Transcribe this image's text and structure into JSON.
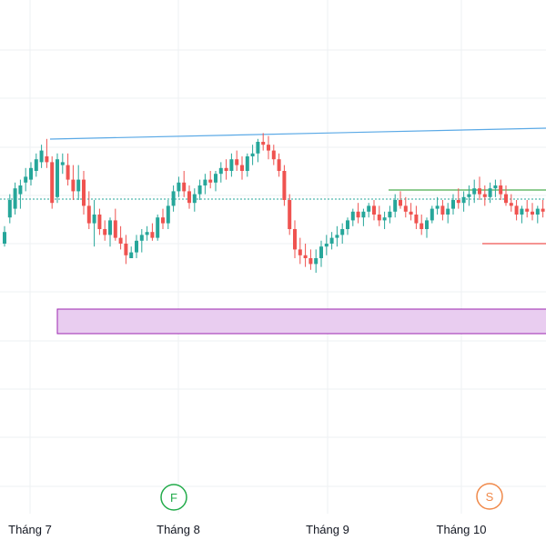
{
  "chart_data": {
    "type": "candlestick",
    "x_axis_labels": [
      "Tháng 7",
      "Tháng 8",
      "Tháng 9",
      "Tháng 10"
    ],
    "event_markers": [
      {
        "label": "F",
        "color": "#22ab4a"
      },
      {
        "label": "S",
        "color": "#f0894a"
      }
    ],
    "colors": {
      "up": "#26a69a",
      "down": "#ef5350",
      "trendline": "#5aa9e6",
      "support_zone_fill": "#e9cdf0",
      "support_zone_border": "#9c27b0",
      "resistance_line": "#4caf50",
      "last_price_line": "#26a69a",
      "grid": "#eef0f3"
    },
    "y_range": [
      0,
      100
    ],
    "candles": [
      [
        35,
        41,
        34,
        39
      ],
      [
        44,
        52,
        42,
        50
      ],
      [
        47,
        56,
        45,
        54
      ],
      [
        52,
        57,
        47,
        55
      ],
      [
        56,
        61,
        53,
        58
      ],
      [
        57,
        63,
        55,
        61
      ],
      [
        60,
        66,
        58,
        64
      ],
      [
        63,
        69,
        61,
        67
      ],
      [
        65,
        71,
        61,
        63
      ],
      [
        63,
        65,
        47,
        49
      ],
      [
        51,
        66,
        49,
        64
      ],
      [
        62,
        66,
        59,
        63
      ],
      [
        62,
        66,
        55,
        57
      ],
      [
        57,
        62,
        50,
        53
      ],
      [
        53,
        62,
        50,
        57
      ],
      [
        57,
        60,
        45,
        48
      ],
      [
        48,
        53,
        40,
        42
      ],
      [
        42,
        50,
        34,
        45
      ],
      [
        45,
        47,
        38,
        40
      ],
      [
        40,
        43,
        36,
        38
      ],
      [
        38,
        44,
        34,
        43
      ],
      [
        43,
        47,
        36,
        37
      ],
      [
        37,
        41,
        33,
        35
      ],
      [
        35,
        38,
        28,
        31
      ],
      [
        30,
        34,
        30,
        32
      ],
      [
        32,
        38,
        30,
        36
      ],
      [
        36,
        40,
        32,
        38
      ],
      [
        38,
        41,
        36,
        39
      ],
      [
        39,
        42,
        36,
        37
      ],
      [
        37,
        45,
        36,
        44
      ],
      [
        44,
        47,
        40,
        42
      ],
      [
        42,
        50,
        40,
        48
      ],
      [
        48,
        55,
        46,
        53
      ],
      [
        53,
        58,
        51,
        56
      ],
      [
        56,
        60,
        51,
        53
      ],
      [
        53,
        55,
        47,
        49
      ],
      [
        49,
        54,
        46,
        52
      ],
      [
        52,
        57,
        50,
        55
      ],
      [
        55,
        59,
        52,
        57
      ],
      [
        57,
        60,
        54,
        56
      ],
      [
        56,
        60,
        53,
        59
      ],
      [
        59,
        63,
        56,
        61
      ],
      [
        61,
        64,
        57,
        60
      ],
      [
        60,
        66,
        58,
        64
      ],
      [
        64,
        67,
        60,
        62
      ],
      [
        62,
        65,
        57,
        60
      ],
      [
        60,
        66,
        58,
        65
      ],
      [
        65,
        69,
        62,
        66
      ],
      [
        66,
        71,
        63,
        70
      ],
      [
        70,
        73,
        67,
        69
      ],
      [
        69,
        72,
        64,
        67
      ],
      [
        67,
        69,
        62,
        64
      ],
      [
        64,
        66,
        58,
        60
      ],
      [
        60,
        62,
        48,
        50
      ],
      [
        50,
        52,
        38,
        40
      ],
      [
        40,
        43,
        30,
        33
      ],
      [
        33,
        37,
        28,
        31
      ],
      [
        31,
        35,
        27,
        30
      ],
      [
        30,
        33,
        26,
        28
      ],
      [
        28,
        33,
        25,
        30
      ],
      [
        30,
        36,
        27,
        34
      ],
      [
        34,
        38,
        31,
        35
      ],
      [
        35,
        39,
        33,
        37
      ],
      [
        37,
        41,
        34,
        38
      ],
      [
        38,
        42,
        35,
        40
      ],
      [
        40,
        44,
        38,
        43
      ],
      [
        43,
        47,
        41,
        46
      ],
      [
        46,
        49,
        42,
        44
      ],
      [
        44,
        47,
        41,
        46
      ],
      [
        46,
        49,
        44,
        48
      ],
      [
        48,
        50,
        43,
        45
      ],
      [
        45,
        48,
        41,
        43
      ],
      [
        43,
        46,
        40,
        44
      ],
      [
        44,
        48,
        42,
        46
      ],
      [
        46,
        52,
        44,
        50
      ],
      [
        50,
        53,
        47,
        48
      ],
      [
        48,
        51,
        44,
        46
      ],
      [
        46,
        49,
        43,
        45
      ],
      [
        45,
        48,
        40,
        42
      ],
      [
        42,
        45,
        38,
        40
      ],
      [
        40,
        44,
        37,
        43
      ],
      [
        43,
        48,
        42,
        47
      ],
      [
        47,
        51,
        45,
        48
      ],
      [
        48,
        50,
        43,
        45
      ],
      [
        45,
        49,
        42,
        47
      ],
      [
        47,
        52,
        45,
        50
      ],
      [
        50,
        54,
        47,
        49
      ],
      [
        49,
        53,
        46,
        51
      ],
      [
        51,
        55,
        48,
        52
      ],
      [
        52,
        57,
        49,
        54
      ],
      [
        54,
        58,
        50,
        52
      ],
      [
        52,
        55,
        48,
        51
      ],
      [
        51,
        56,
        49,
        54
      ],
      [
        54,
        57,
        51,
        55
      ],
      [
        55,
        57,
        50,
        52
      ],
      [
        52,
        55,
        48,
        49
      ],
      [
        49,
        52,
        46,
        48
      ],
      [
        48,
        50,
        43,
        45
      ],
      [
        45,
        48,
        42,
        47
      ],
      [
        47,
        50,
        44,
        46
      ],
      [
        46,
        49,
        43,
        45
      ],
      [
        45,
        48,
        42,
        47
      ],
      [
        47,
        50,
        44,
        46
      ],
      [
        46,
        49,
        43,
        45
      ],
      [
        45,
        48,
        42,
        44
      ],
      [
        44,
        47,
        41,
        46
      ],
      [
        46,
        49,
        43,
        45
      ]
    ]
  }
}
